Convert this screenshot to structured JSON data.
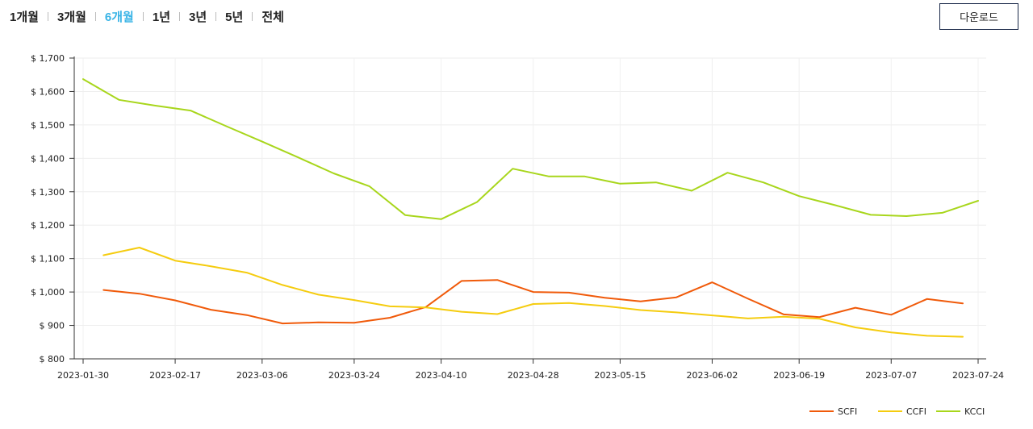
{
  "toolbar": {
    "tabs": [
      {
        "label": "1개월",
        "active": false
      },
      {
        "label": "3개월",
        "active": false
      },
      {
        "label": "6개월",
        "active": true
      },
      {
        "label": "1년",
        "active": false
      },
      {
        "label": "3년",
        "active": false
      },
      {
        "label": "5년",
        "active": false
      },
      {
        "label": "전체",
        "active": false
      }
    ],
    "download_label": "다운로드"
  },
  "colors": {
    "active_tab": "#3ab4e6",
    "SCFI": "#f05a0a",
    "CCFI": "#f5cc0f",
    "KCCI": "#a8d61c"
  },
  "chart_data": {
    "type": "line",
    "title": "",
    "xlabel": "",
    "ylabel": "",
    "x_ticks": [
      "2023-01-30",
      "2023-02-17",
      "2023-03-06",
      "2023-03-24",
      "2023-04-10",
      "2023-04-28",
      "2023-05-15",
      "2023-06-02",
      "2023-06-19",
      "2023-07-07",
      "2023-07-24"
    ],
    "y_ticks": [
      "$ 800",
      "$ 900",
      "$ 1,000",
      "$ 1,100",
      "$ 1,200",
      "$ 1,300",
      "$ 1,400",
      "$ 1,500",
      "$ 1,600",
      "$ 1,700"
    ],
    "xlim": [
      "2023-01-30",
      "2023-07-24"
    ],
    "ylim": [
      800,
      1700
    ],
    "grid": true,
    "legend_position": "bottom-right",
    "series": [
      {
        "name": "SCFI",
        "color": "#f05a0a",
        "points": [
          [
            "2023-02-03",
            1006
          ],
          [
            "2023-02-10",
            995
          ],
          [
            "2023-02-17",
            975
          ],
          [
            "2023-02-24",
            947
          ],
          [
            "2023-03-03",
            931
          ],
          [
            "2023-03-10",
            906
          ],
          [
            "2023-03-17",
            909
          ],
          [
            "2023-03-24",
            908
          ],
          [
            "2023-03-31",
            923
          ],
          [
            "2023-04-07",
            955
          ],
          [
            "2023-04-14",
            1033
          ],
          [
            "2023-04-21",
            1036
          ],
          [
            "2023-04-28",
            1000
          ],
          [
            "2023-05-05",
            998
          ],
          [
            "2023-05-12",
            983
          ],
          [
            "2023-05-19",
            972
          ],
          [
            "2023-05-26",
            984
          ],
          [
            "2023-06-02",
            1029
          ],
          [
            "2023-06-09",
            980
          ],
          [
            "2023-06-16",
            933
          ],
          [
            "2023-06-23",
            925
          ],
          [
            "2023-06-30",
            953
          ],
          [
            "2023-07-07",
            932
          ],
          [
            "2023-07-14",
            979
          ],
          [
            "2023-07-21",
            966
          ]
        ]
      },
      {
        "name": "CCFI",
        "color": "#f5cc0f",
        "points": [
          [
            "2023-02-03",
            1110
          ],
          [
            "2023-02-10",
            1133
          ],
          [
            "2023-02-17",
            1094
          ],
          [
            "2023-02-24",
            1077
          ],
          [
            "2023-03-03",
            1058
          ],
          [
            "2023-03-10",
            1021
          ],
          [
            "2023-03-17",
            992
          ],
          [
            "2023-03-24",
            976
          ],
          [
            "2023-03-31",
            957
          ],
          [
            "2023-04-07",
            954
          ],
          [
            "2023-04-14",
            941
          ],
          [
            "2023-04-21",
            934
          ],
          [
            "2023-04-28",
            964
          ],
          [
            "2023-05-05",
            967
          ],
          [
            "2023-05-12",
            958
          ],
          [
            "2023-05-19",
            946
          ],
          [
            "2023-05-26",
            939
          ],
          [
            "2023-06-02",
            930
          ],
          [
            "2023-06-09",
            921
          ],
          [
            "2023-06-16",
            926
          ],
          [
            "2023-06-23",
            920
          ],
          [
            "2023-06-30",
            894
          ],
          [
            "2023-07-07",
            879
          ],
          [
            "2023-07-14",
            869
          ],
          [
            "2023-07-21",
            866
          ]
        ]
      },
      {
        "name": "KCCI",
        "color": "#a8d61c",
        "points": [
          [
            "2023-01-30",
            1637
          ],
          [
            "2023-02-06",
            1575
          ],
          [
            "2023-02-13",
            1558
          ],
          [
            "2023-02-20",
            1543
          ],
          [
            "2023-02-27",
            1496
          ],
          [
            "2023-03-06",
            1450
          ],
          [
            "2023-03-13",
            1403
          ],
          [
            "2023-03-20",
            1355
          ],
          [
            "2023-03-27",
            1316
          ],
          [
            "2023-04-03",
            1230
          ],
          [
            "2023-04-10",
            1218
          ],
          [
            "2023-04-17",
            1269
          ],
          [
            "2023-04-24",
            1369
          ],
          [
            "2023-05-01",
            1346
          ],
          [
            "2023-05-08",
            1346
          ],
          [
            "2023-05-15",
            1324
          ],
          [
            "2023-05-22",
            1328
          ],
          [
            "2023-05-29",
            1303
          ],
          [
            "2023-06-05",
            1357
          ],
          [
            "2023-06-12",
            1328
          ],
          [
            "2023-06-19",
            1287
          ],
          [
            "2023-06-26",
            1260
          ],
          [
            "2023-07-03",
            1231
          ],
          [
            "2023-07-10",
            1227
          ],
          [
            "2023-07-17",
            1237
          ],
          [
            "2023-07-24",
            1273
          ]
        ]
      }
    ]
  }
}
